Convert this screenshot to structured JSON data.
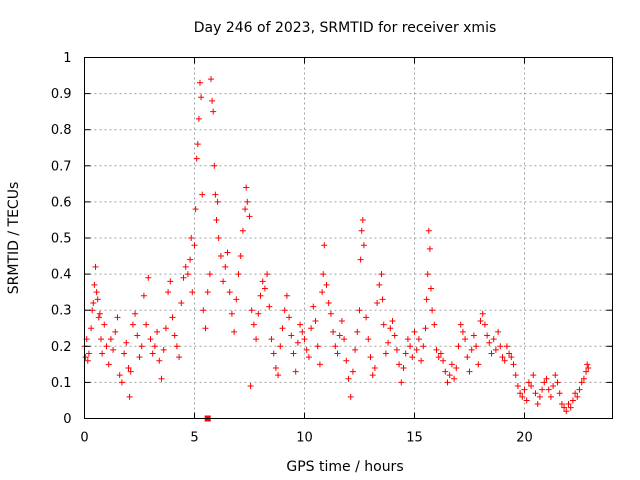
{
  "chart_data": {
    "type": "scatter",
    "title": "Day 246 of 2023, SRMTID for receiver xmis",
    "xlabel": "GPS time / hours",
    "ylabel": "SRMTID / TECUs",
    "xlim": [
      0,
      24
    ],
    "ylim": [
      0,
      1
    ],
    "xticks": [
      0,
      5,
      10,
      15,
      20
    ],
    "xtick_labels": [
      "0",
      "5",
      "10",
      "15",
      "20"
    ],
    "yticks": [
      0,
      0.1,
      0.2,
      0.3,
      0.4,
      0.5,
      0.6,
      0.7,
      0.8,
      0.9,
      1
    ],
    "ytick_labels": [
      "0",
      "0.1",
      "0.2",
      "0.3",
      "0.4",
      "0.5",
      "0.6",
      "0.7",
      "0.8",
      "0.9",
      "1"
    ],
    "grid": true,
    "marker": "+",
    "color": "#ff0000",
    "series": [
      {
        "name": "SRMTID",
        "points": [
          [
            0.0,
            0.2
          ],
          [
            0.05,
            0.17
          ],
          [
            0.1,
            0.22
          ],
          [
            0.15,
            0.16
          ],
          [
            0.2,
            0.18
          ],
          [
            0.3,
            0.25
          ],
          [
            0.35,
            0.3
          ],
          [
            0.4,
            0.32
          ],
          [
            0.45,
            0.37
          ],
          [
            0.5,
            0.42
          ],
          [
            0.55,
            0.35
          ],
          [
            0.6,
            0.33
          ],
          [
            0.65,
            0.28
          ],
          [
            0.7,
            0.29
          ],
          [
            0.75,
            0.22
          ],
          [
            0.8,
            0.18
          ],
          [
            0.9,
            0.26
          ],
          [
            1.0,
            0.2
          ],
          [
            1.1,
            0.15
          ],
          [
            1.2,
            0.22
          ],
          [
            1.3,
            0.19
          ],
          [
            1.4,
            0.24
          ],
          [
            1.5,
            0.28
          ],
          [
            1.6,
            0.12
          ],
          [
            1.7,
            0.1
          ],
          [
            1.8,
            0.18
          ],
          [
            1.9,
            0.21
          ],
          [
            2.0,
            0.14
          ],
          [
            2.05,
            0.06
          ],
          [
            2.1,
            0.13
          ],
          [
            2.2,
            0.26
          ],
          [
            2.3,
            0.29
          ],
          [
            2.4,
            0.23
          ],
          [
            2.5,
            0.17
          ],
          [
            2.6,
            0.2
          ],
          [
            2.7,
            0.34
          ],
          [
            2.8,
            0.26
          ],
          [
            2.9,
            0.39
          ],
          [
            3.0,
            0.22
          ],
          [
            3.1,
            0.18
          ],
          [
            3.2,
            0.2
          ],
          [
            3.3,
            0.24
          ],
          [
            3.4,
            0.16
          ],
          [
            3.5,
            0.11
          ],
          [
            3.6,
            0.19
          ],
          [
            3.7,
            0.25
          ],
          [
            3.8,
            0.35
          ],
          [
            3.9,
            0.38
          ],
          [
            4.0,
            0.28
          ],
          [
            4.1,
            0.23
          ],
          [
            4.2,
            0.2
          ],
          [
            4.3,
            0.17
          ],
          [
            4.4,
            0.32
          ],
          [
            4.5,
            0.39
          ],
          [
            4.6,
            0.42
          ],
          [
            4.7,
            0.4
          ],
          [
            4.8,
            0.44
          ],
          [
            4.85,
            0.5
          ],
          [
            4.9,
            0.35
          ],
          [
            5.0,
            0.48
          ],
          [
            5.05,
            0.58
          ],
          [
            5.1,
            0.72
          ],
          [
            5.15,
            0.76
          ],
          [
            5.2,
            0.83
          ],
          [
            5.25,
            0.93
          ],
          [
            5.3,
            0.89
          ],
          [
            5.35,
            0.62
          ],
          [
            5.4,
            0.3
          ],
          [
            5.5,
            0.25
          ],
          [
            5.6,
            0.35
          ],
          [
            5.7,
            0.4
          ],
          [
            5.75,
            0.94
          ],
          [
            5.8,
            0.88
          ],
          [
            5.85,
            0.85
          ],
          [
            5.9,
            0.7
          ],
          [
            5.95,
            0.62
          ],
          [
            6.0,
            0.55
          ],
          [
            6.05,
            0.6
          ],
          [
            6.1,
            0.5
          ],
          [
            6.2,
            0.45
          ],
          [
            6.3,
            0.38
          ],
          [
            6.4,
            0.42
          ],
          [
            6.5,
            0.46
          ],
          [
            6.6,
            0.35
          ],
          [
            6.7,
            0.29
          ],
          [
            6.8,
            0.24
          ],
          [
            6.9,
            0.33
          ],
          [
            7.0,
            0.4
          ],
          [
            7.1,
            0.45
          ],
          [
            7.2,
            0.52
          ],
          [
            7.3,
            0.58
          ],
          [
            7.35,
            0.64
          ],
          [
            7.4,
            0.6
          ],
          [
            7.5,
            0.56
          ],
          [
            7.55,
            0.09
          ],
          [
            7.6,
            0.3
          ],
          [
            7.7,
            0.26
          ],
          [
            7.8,
            0.22
          ],
          [
            7.9,
            0.29
          ],
          [
            8.0,
            0.34
          ],
          [
            8.1,
            0.38
          ],
          [
            8.2,
            0.36
          ],
          [
            8.3,
            0.4
          ],
          [
            8.4,
            0.31
          ],
          [
            8.5,
            0.22
          ],
          [
            8.6,
            0.18
          ],
          [
            8.7,
            0.14
          ],
          [
            8.8,
            0.12
          ],
          [
            8.9,
            0.2
          ],
          [
            9.0,
            0.25
          ],
          [
            9.1,
            0.3
          ],
          [
            9.2,
            0.34
          ],
          [
            9.3,
            0.28
          ],
          [
            9.4,
            0.23
          ],
          [
            9.5,
            0.18
          ],
          [
            9.6,
            0.13
          ],
          [
            9.7,
            0.21
          ],
          [
            9.8,
            0.26
          ],
          [
            9.9,
            0.24
          ],
          [
            10.0,
            0.22
          ],
          [
            10.1,
            0.19
          ],
          [
            10.2,
            0.17
          ],
          [
            10.3,
            0.25
          ],
          [
            10.4,
            0.31
          ],
          [
            10.5,
            0.27
          ],
          [
            10.6,
            0.2
          ],
          [
            10.7,
            0.15
          ],
          [
            10.8,
            0.35
          ],
          [
            10.85,
            0.4
          ],
          [
            10.9,
            0.48
          ],
          [
            11.0,
            0.37
          ],
          [
            11.1,
            0.32
          ],
          [
            11.2,
            0.29
          ],
          [
            11.3,
            0.24
          ],
          [
            11.4,
            0.2
          ],
          [
            11.5,
            0.18
          ],
          [
            11.6,
            0.23
          ],
          [
            11.7,
            0.27
          ],
          [
            11.8,
            0.22
          ],
          [
            11.9,
            0.16
          ],
          [
            12.0,
            0.11
          ],
          [
            12.1,
            0.06
          ],
          [
            12.2,
            0.13
          ],
          [
            12.3,
            0.19
          ],
          [
            12.4,
            0.24
          ],
          [
            12.5,
            0.3
          ],
          [
            12.55,
            0.44
          ],
          [
            12.6,
            0.52
          ],
          [
            12.65,
            0.55
          ],
          [
            12.7,
            0.48
          ],
          [
            12.8,
            0.28
          ],
          [
            12.9,
            0.22
          ],
          [
            13.0,
            0.17
          ],
          [
            13.1,
            0.12
          ],
          [
            13.2,
            0.14
          ],
          [
            13.3,
            0.32
          ],
          [
            13.4,
            0.37
          ],
          [
            13.5,
            0.4
          ],
          [
            13.55,
            0.33
          ],
          [
            13.6,
            0.26
          ],
          [
            13.7,
            0.18
          ],
          [
            13.8,
            0.21
          ],
          [
            13.9,
            0.25
          ],
          [
            14.0,
            0.27
          ],
          [
            14.1,
            0.23
          ],
          [
            14.2,
            0.19
          ],
          [
            14.3,
            0.15
          ],
          [
            14.4,
            0.1
          ],
          [
            14.5,
            0.14
          ],
          [
            14.6,
            0.18
          ],
          [
            14.7,
            0.22
          ],
          [
            14.8,
            0.2
          ],
          [
            14.9,
            0.17
          ],
          [
            15.0,
            0.24
          ],
          [
            15.1,
            0.19
          ],
          [
            15.2,
            0.22
          ],
          [
            15.3,
            0.16
          ],
          [
            15.4,
            0.2
          ],
          [
            15.5,
            0.25
          ],
          [
            15.55,
            0.33
          ],
          [
            15.6,
            0.4
          ],
          [
            15.65,
            0.52
          ],
          [
            15.7,
            0.47
          ],
          [
            15.75,
            0.36
          ],
          [
            15.8,
            0.3
          ],
          [
            15.9,
            0.26
          ],
          [
            16.0,
            0.19
          ],
          [
            16.1,
            0.17
          ],
          [
            16.2,
            0.18
          ],
          [
            16.3,
            0.16
          ],
          [
            16.4,
            0.13
          ],
          [
            16.5,
            0.1
          ],
          [
            16.6,
            0.12
          ],
          [
            16.7,
            0.15
          ],
          [
            16.8,
            0.11
          ],
          [
            16.9,
            0.14
          ],
          [
            17.0,
            0.2
          ],
          [
            17.1,
            0.26
          ],
          [
            17.2,
            0.24
          ],
          [
            17.3,
            0.22
          ],
          [
            17.4,
            0.17
          ],
          [
            17.5,
            0.13
          ],
          [
            17.6,
            0.19
          ],
          [
            17.7,
            0.23
          ],
          [
            17.8,
            0.2
          ],
          [
            17.9,
            0.15
          ],
          [
            18.0,
            0.27
          ],
          [
            18.1,
            0.29
          ],
          [
            18.2,
            0.26
          ],
          [
            18.3,
            0.23
          ],
          [
            18.4,
            0.21
          ],
          [
            18.5,
            0.18
          ],
          [
            18.6,
            0.22
          ],
          [
            18.7,
            0.19
          ],
          [
            18.8,
            0.24
          ],
          [
            18.9,
            0.2
          ],
          [
            19.0,
            0.17
          ],
          [
            19.1,
            0.16
          ],
          [
            19.2,
            0.2
          ],
          [
            19.3,
            0.18
          ],
          [
            19.4,
            0.17
          ],
          [
            19.5,
            0.15
          ],
          [
            19.6,
            0.12
          ],
          [
            19.7,
            0.09
          ],
          [
            19.8,
            0.07
          ],
          [
            19.9,
            0.06
          ],
          [
            20.0,
            0.08
          ],
          [
            20.1,
            0.05
          ],
          [
            20.2,
            0.1
          ],
          [
            20.3,
            0.09
          ],
          [
            20.4,
            0.12
          ],
          [
            20.5,
            0.07
          ],
          [
            20.6,
            0.04
          ],
          [
            20.7,
            0.06
          ],
          [
            20.8,
            0.08
          ],
          [
            20.9,
            0.1
          ],
          [
            21.0,
            0.11
          ],
          [
            21.1,
            0.08
          ],
          [
            21.2,
            0.06
          ],
          [
            21.3,
            0.09
          ],
          [
            21.4,
            0.12
          ],
          [
            21.5,
            0.1
          ],
          [
            21.6,
            0.07
          ],
          [
            21.7,
            0.04
          ],
          [
            21.8,
            0.03
          ],
          [
            21.9,
            0.02
          ],
          [
            22.0,
            0.04
          ],
          [
            22.1,
            0.03
          ],
          [
            22.2,
            0.05
          ],
          [
            22.3,
            0.07
          ],
          [
            22.4,
            0.06
          ],
          [
            22.5,
            0.08
          ],
          [
            22.6,
            0.1
          ],
          [
            22.7,
            0.11
          ],
          [
            22.8,
            0.13
          ],
          [
            22.85,
            0.15
          ],
          [
            22.9,
            0.14
          ]
        ]
      }
    ],
    "outliers": [
      [
        5.6,
        0.0
      ]
    ]
  }
}
